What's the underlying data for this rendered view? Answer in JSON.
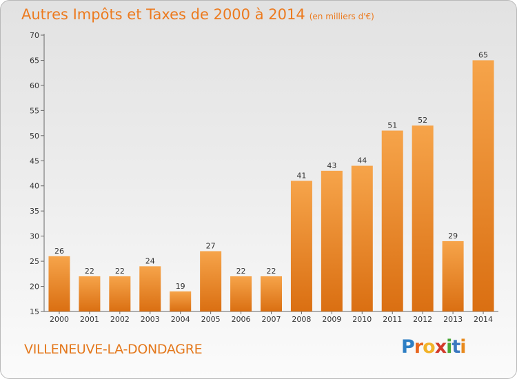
{
  "header": {
    "title": "Autres Impôts et Taxes de 2000 à 2014",
    "unit": "(en milliers d'€)"
  },
  "footer": {
    "commune": "VILLENEUVE-LA-DONDAGRE",
    "logo": [
      "P",
      "r",
      "o",
      "x",
      "i",
      "t",
      "i"
    ],
    "logo_colors": [
      "#2e7fc4",
      "#e8661e",
      "#f2b32a",
      "#d23a2a",
      "#4aa838",
      "#3a78c0",
      "#e88a1e"
    ]
  },
  "chart_data": {
    "type": "bar",
    "title": "Autres Impôts et Taxes de 2000 à 2014",
    "subtitle": "(en milliers d'€)",
    "xlabel": "",
    "ylabel": "",
    "categories": [
      "2000",
      "2001",
      "2002",
      "2003",
      "2004",
      "2005",
      "2006",
      "2007",
      "2008",
      "2009",
      "2010",
      "2011",
      "2012",
      "2013",
      "2014"
    ],
    "values": [
      26,
      22,
      22,
      24,
      19,
      27,
      22,
      22,
      41,
      43,
      44,
      51,
      52,
      29,
      65
    ],
    "ylim": [
      15,
      70
    ],
    "yticks": [
      15,
      20,
      25,
      30,
      35,
      40,
      45,
      50,
      55,
      60,
      65,
      70
    ],
    "grid": false,
    "bar_color_top": "#f6a44a",
    "bar_color_bottom": "#da6f12"
  }
}
